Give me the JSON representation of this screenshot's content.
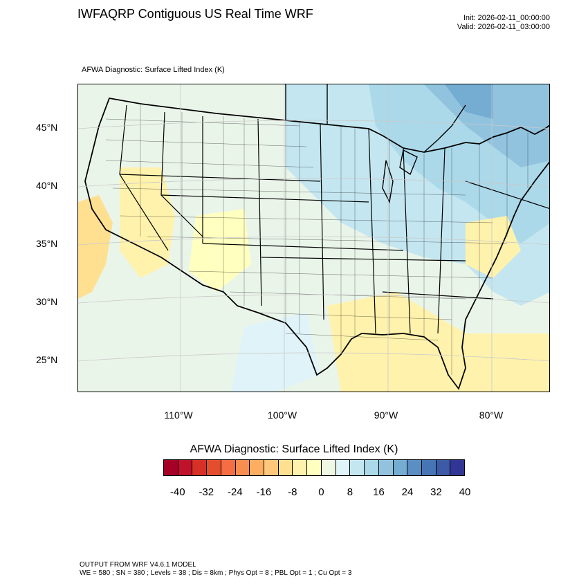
{
  "title": "IWFAQRP Contiguous US Real Time WRF",
  "init": "Init: 2026-02-11_00:00:00",
  "valid": "Valid: 2026-02-11_03:00:00",
  "plot_label": "AFWA Diagnostic: Surface Lifted Index   (K)",
  "latitude_labels": [
    "45°N",
    "40°N",
    "35°N",
    "30°N",
    "25°N"
  ],
  "longitude_labels": [
    "110°W",
    "100°W",
    "90°W",
    "80°W"
  ],
  "colorbar": {
    "title": "AFWA Diagnostic: Surface Lifted Index  (K)",
    "colors": [
      "#a50026",
      "#c0122a",
      "#d73027",
      "#e54d2f",
      "#f46d43",
      "#f88d52",
      "#fdae61",
      "#fec77a",
      "#fee090",
      "#fff2ac",
      "#ffffbf",
      "#eef8e4",
      "#e0f3f8",
      "#c4e6f0",
      "#abd9e9",
      "#91c3de",
      "#74add1",
      "#5b8fc4",
      "#4575b4",
      "#3c5aa6",
      "#313695"
    ],
    "tick_labels": [
      "-40",
      "-32",
      "-24",
      "-16",
      "-8",
      "0",
      "8",
      "16",
      "24",
      "32",
      "40"
    ]
  },
  "footer": {
    "line1": "OUTPUT FROM WRF V4.6.1 MODEL",
    "line2": "WE = 580 ; SN = 380 ; Levels = 38 ; Dis = 8km ; Phys Opt = 8 ; PBL Opt = 1 ; Cu Opt = 3"
  }
}
